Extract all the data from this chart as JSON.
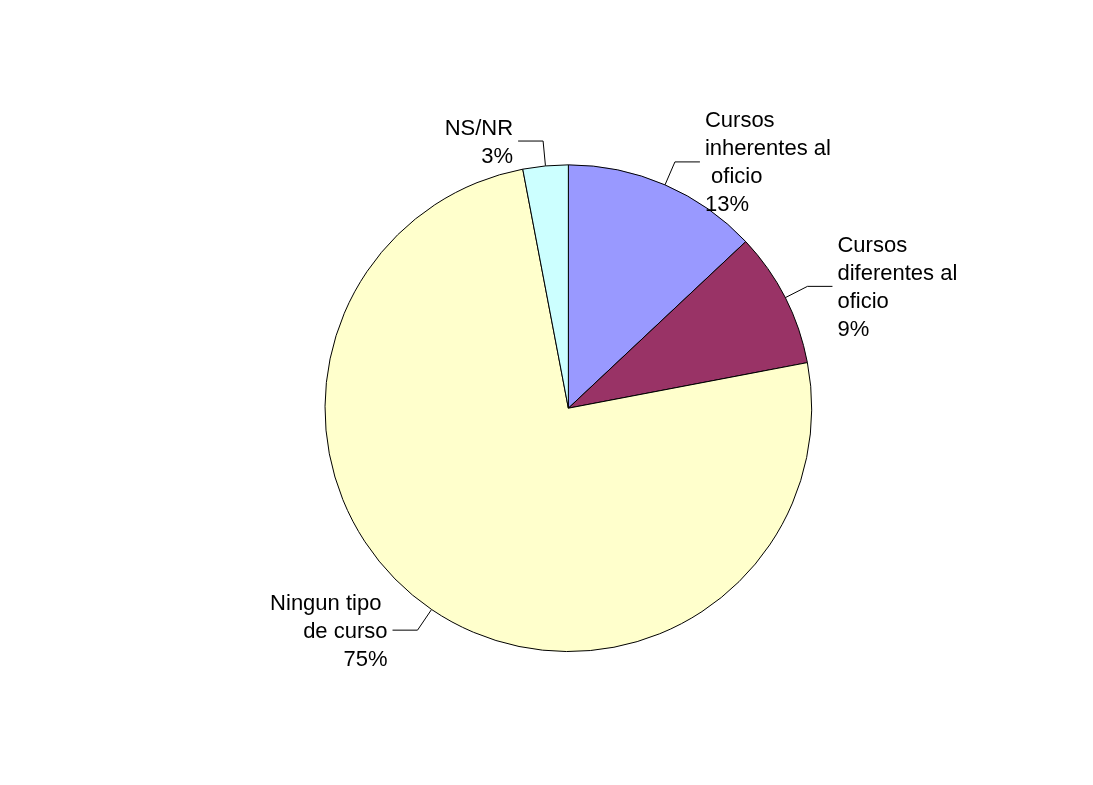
{
  "chart_data": {
    "type": "pie",
    "categories": [
      "Cursos inherentes al oficio",
      "Cursos diferentes al oficio",
      "Ningun tipo de curso",
      "NS/NR"
    ],
    "values": [
      13,
      9,
      75,
      3
    ],
    "value_labels": [
      "13%",
      "9%",
      "75%",
      "3%"
    ],
    "colors": [
      "#9999ff",
      "#993366",
      "#ffffcc",
      "#ccffff"
    ],
    "legend": false
  }
}
